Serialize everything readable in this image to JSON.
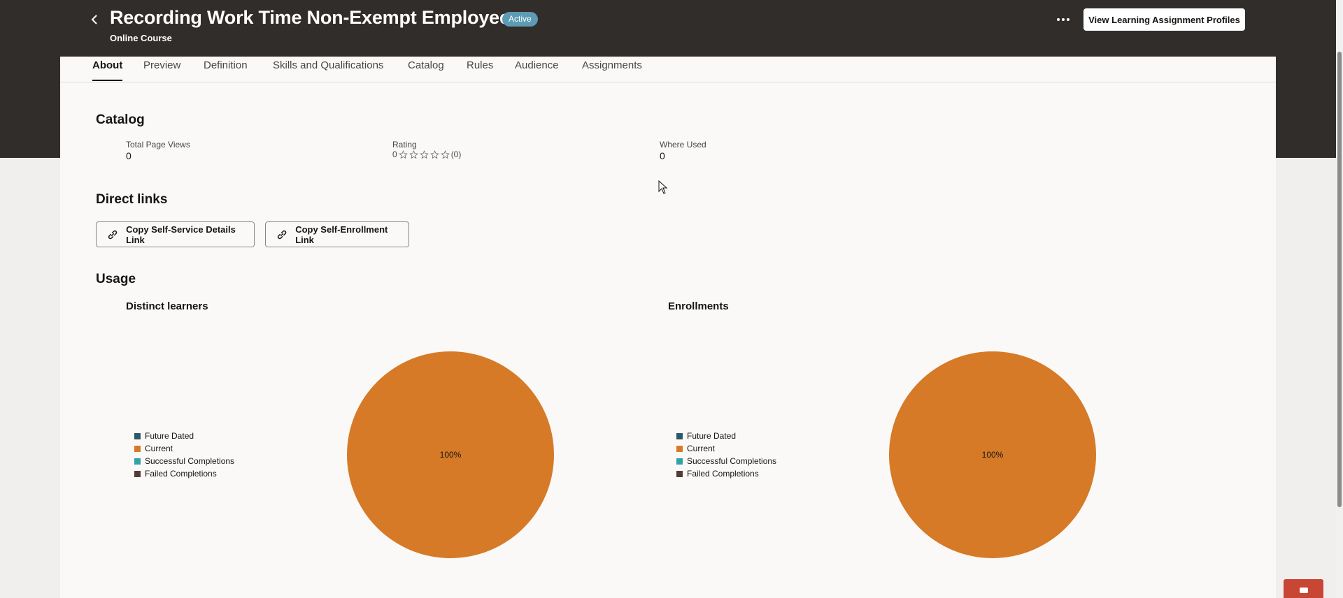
{
  "header": {
    "title": "Recording Work Time Non-Exempt Employees",
    "status": "Active",
    "subtitle": "Online Course",
    "primary_button": "View Learning Assignment Profiles",
    "more_icon": "ellipsis-icon",
    "back_icon": "chevron-left-icon"
  },
  "tabs": [
    {
      "label": "About",
      "active": true
    },
    {
      "label": "Preview",
      "active": false
    },
    {
      "label": "Definition",
      "active": false
    },
    {
      "label": "Skills and Qualifications",
      "active": false
    },
    {
      "label": "Catalog",
      "active": false
    },
    {
      "label": "Rules",
      "active": false
    },
    {
      "label": "Audience",
      "active": false
    },
    {
      "label": "Assignments",
      "active": false
    }
  ],
  "catalog": {
    "heading": "Catalog",
    "total_page_views_label": "Total Page Views",
    "total_page_views_value": "0",
    "rating_label": "Rating",
    "rating_value": "0",
    "rating_stars": 0,
    "rating_max": 5,
    "rating_count": "(0)",
    "where_used_label": "Where Used",
    "where_used_value": "0"
  },
  "direct_links": {
    "heading": "Direct links",
    "details_button": "Copy Self-Service Details Link",
    "enrollment_button": "Copy Self-Enrollment Link",
    "link_icon": "link-icon"
  },
  "usage": {
    "heading": "Usage"
  },
  "colors": {
    "header_bg": "#312d2a",
    "future_dated": "#2c5967",
    "current": "#d67a27",
    "successful": "#30a3a2",
    "failed": "#4f3d36",
    "badge": "#5c9bb3"
  },
  "chart_data": [
    {
      "type": "pie",
      "title": "Distinct learners",
      "categories": [
        "Future Dated",
        "Current",
        "Successful Completions",
        "Failed Completions"
      ],
      "values": [
        0,
        100,
        0,
        0
      ],
      "slice_label": "100%",
      "legend": "left"
    },
    {
      "type": "pie",
      "title": "Enrollments",
      "categories": [
        "Future Dated",
        "Current",
        "Successful Completions",
        "Failed Completions"
      ],
      "values": [
        0,
        100,
        0,
        0
      ],
      "slice_label": "100%",
      "legend": "left"
    }
  ]
}
